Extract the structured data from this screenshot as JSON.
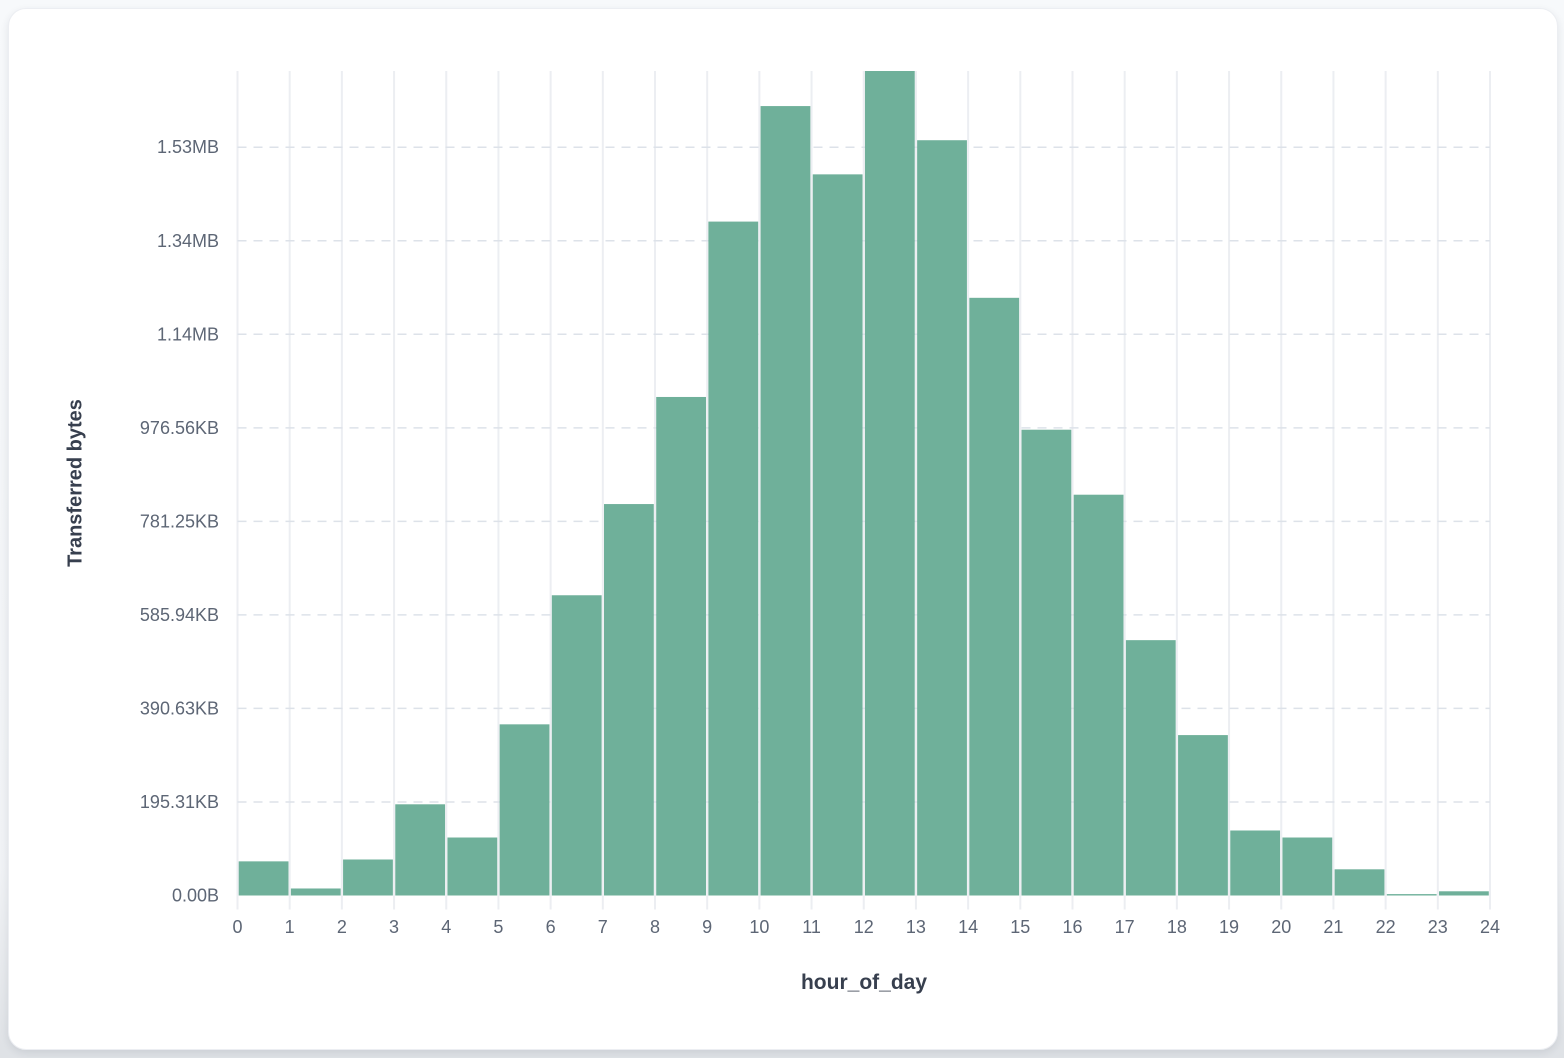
{
  "card": {
    "background_color": "#ffffff",
    "page_background_color": "#f0f2f5"
  },
  "chart_data": {
    "type": "bar",
    "subtype": "histogram",
    "title": "",
    "xlabel": "hour_of_day",
    "ylabel": "Transferred bytes",
    "categories": [
      0,
      1,
      2,
      3,
      4,
      5,
      6,
      7,
      8,
      9,
      10,
      11,
      12,
      13,
      14,
      15,
      16,
      17,
      18,
      19,
      20,
      21,
      22,
      23
    ],
    "values_bytes": [
      73000,
      15000,
      77000,
      195000,
      124000,
      366000,
      642000,
      837000,
      1066000,
      1441000,
      1688000,
      1542000,
      1763000,
      1615000,
      1278000,
      996000,
      857000,
      546000,
      343000,
      139000,
      124000,
      56000,
      3000,
      9000
    ],
    "x_bin_edges": [
      0,
      1,
      2,
      3,
      4,
      5,
      6,
      7,
      8,
      9,
      10,
      11,
      12,
      13,
      14,
      15,
      16,
      17,
      18,
      19,
      20,
      21,
      22,
      23,
      24
    ],
    "x_tick_labels": [
      "0",
      "1",
      "2",
      "3",
      "4",
      "5",
      "6",
      "7",
      "8",
      "9",
      "10",
      "11",
      "12",
      "13",
      "14",
      "15",
      "16",
      "17",
      "18",
      "19",
      "20",
      "21",
      "22",
      "23",
      "24"
    ],
    "y_tick_labels": [
      "0.00B",
      "195.31KB",
      "390.63KB",
      "585.94KB",
      "781.25KB",
      "976.56KB",
      "1.14MB",
      "1.34MB",
      "1.53MB"
    ],
    "y_tick_values_bytes": [
      0,
      200000,
      400000,
      600000,
      800000,
      1000000,
      1200000,
      1400000,
      1600000
    ],
    "ylim_bytes": [
      0,
      1763000
    ],
    "grid": "on",
    "legend": "none",
    "bar_color": "#6FB09A",
    "bar_gap_color": "#ffffff",
    "vertical_gridline_color": "#ECEEF2",
    "horizontal_gridline_color": "#DDE2E9",
    "tick_label_color": "#5D6675",
    "axis_title_color": "#373F4E"
  }
}
